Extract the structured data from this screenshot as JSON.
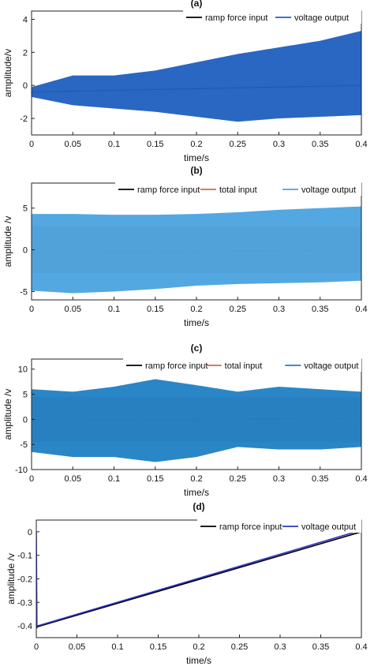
{
  "chart_data": [
    {
      "panel": "(a)",
      "type": "line",
      "title": "(a)",
      "xlabel": "time/s",
      "ylabel": "amplitude/v",
      "xlim": [
        0,
        0.4
      ],
      "ylim": [
        -3,
        4.5
      ],
      "xticks": [
        0,
        0.05,
        0.1,
        0.15,
        0.2,
        0.25,
        0.3,
        0.35,
        0.4
      ],
      "xtick_labels": [
        "0",
        "0.05",
        "0.1",
        "0.15",
        "0.2",
        "0.25",
        "0.3",
        "0.35",
        "0.4"
      ],
      "yticks": [
        -2,
        0,
        2,
        4
      ],
      "ytick_labels": [
        "-2",
        "0",
        "2",
        "4"
      ],
      "grid": false,
      "legend_position": "top-right",
      "series": [
        {
          "name": "ramp force input",
          "color": "#000000",
          "kind": "ramp",
          "x": [
            0,
            0.4
          ],
          "y": [
            -0.4,
            0.0
          ]
        },
        {
          "name": "voltage output",
          "color": "#1f5fbf",
          "kind": "oscillation",
          "x": [
            0,
            0.05,
            0.1,
            0.15,
            0.2,
            0.25,
            0.3,
            0.35,
            0.4
          ],
          "upper": [
            -0.1,
            0.6,
            0.6,
            0.9,
            1.4,
            1.9,
            2.3,
            2.7,
            3.3
          ],
          "lower": [
            -0.7,
            -1.2,
            -1.4,
            -1.6,
            -1.9,
            -2.2,
            -2.0,
            -1.9,
            -1.8
          ]
        }
      ],
      "legend_entries": [
        "ramp force input",
        "voltage output"
      ]
    },
    {
      "panel": "(b)",
      "type": "line",
      "title": "(b)",
      "xlabel": "time/s",
      "ylabel": "amplitude /v",
      "xlim": [
        0,
        0.4
      ],
      "ylim": [
        -6,
        8
      ],
      "xticks": [
        0,
        0.05,
        0.1,
        0.15,
        0.2,
        0.25,
        0.3,
        0.35,
        0.4
      ],
      "xtick_labels": [
        "0",
        "0.05",
        "0.1",
        "0.15",
        "0.2",
        "0.25",
        "0.3",
        "0.35",
        "0.4"
      ],
      "yticks": [
        -5,
        0,
        5
      ],
      "ytick_labels": [
        "-5",
        "0",
        "5"
      ],
      "grid": false,
      "legend_position": "top-right",
      "series": [
        {
          "name": "ramp force input",
          "color": "#000000",
          "kind": "ramp",
          "x": [
            0,
            0.4
          ],
          "y": [
            -0.4,
            0.0
          ]
        },
        {
          "name": "total input",
          "color": "#d2693e",
          "kind": "oscillation",
          "x": [
            0,
            0.4
          ],
          "upper": [
            2.8,
            2.8
          ],
          "lower": [
            -2.8,
            -2.8
          ]
        },
        {
          "name": "voltage output",
          "color": "#4aa3df",
          "kind": "oscillation",
          "x": [
            0,
            0.05,
            0.1,
            0.15,
            0.2,
            0.25,
            0.3,
            0.35,
            0.4
          ],
          "upper": [
            4.3,
            4.3,
            4.2,
            4.2,
            4.3,
            4.5,
            4.8,
            5.0,
            5.2
          ],
          "lower": [
            -4.9,
            -5.2,
            -5.0,
            -4.7,
            -4.3,
            -4.1,
            -4.0,
            -3.9,
            -3.7
          ]
        }
      ],
      "legend_entries": [
        "ramp force input",
        "total input",
        "voltage output"
      ]
    },
    {
      "panel": "(c)",
      "type": "line",
      "title": "(c)",
      "xlabel": "time/s",
      "ylabel": "amplitude  /v",
      "xlim": [
        0,
        0.4
      ],
      "ylim": [
        -10,
        12
      ],
      "xticks": [
        0,
        0.05,
        0.1,
        0.15,
        0.2,
        0.25,
        0.3,
        0.35,
        0.4
      ],
      "xtick_labels": [
        "0",
        "0.05",
        "0.1",
        "0.15",
        "0.2",
        "0.25",
        "0.3",
        "0.35",
        "0.4"
      ],
      "yticks": [
        -10,
        -5,
        0,
        5,
        10
      ],
      "ytick_labels": [
        "-10",
        "-5",
        "0",
        "5",
        "10"
      ],
      "grid": false,
      "legend_position": "top-right",
      "series": [
        {
          "name": "ramp force input",
          "color": "#000000",
          "kind": "ramp",
          "x": [
            0,
            0.4
          ],
          "y": [
            -0.3,
            0.2
          ]
        },
        {
          "name": "total input",
          "color": "#d2693e",
          "kind": "oscillation",
          "x": [
            0,
            0.4
          ],
          "upper": [
            4.5,
            4.5
          ],
          "lower": [
            -4.5,
            -4.5
          ]
        },
        {
          "name": "voltage output",
          "color": "#1f7fc4",
          "kind": "oscillation",
          "x": [
            0,
            0.05,
            0.1,
            0.15,
            0.2,
            0.25,
            0.3,
            0.35,
            0.4
          ],
          "upper": [
            6.0,
            5.5,
            6.5,
            8.0,
            6.8,
            5.5,
            6.5,
            6.0,
            5.5
          ],
          "lower": [
            -6.5,
            -7.5,
            -7.5,
            -8.5,
            -7.5,
            -5.5,
            -6.0,
            -6.0,
            -5.5
          ]
        }
      ],
      "legend_entries": [
        "ramp force input",
        "total input",
        "voltage output"
      ]
    },
    {
      "panel": "(d)",
      "type": "line",
      "title": "(d)",
      "xlabel": "time/s",
      "ylabel": "amplitude  /v",
      "xlim": [
        0,
        0.4
      ],
      "ylim": [
        -0.45,
        0.05
      ],
      "xticks": [
        0,
        0.05,
        0.1,
        0.15,
        0.2,
        0.25,
        0.3,
        0.35,
        0.4
      ],
      "xtick_labels": [
        "0",
        "0.05",
        "0.1",
        "0.15",
        "0.2",
        "0.25",
        "0.3",
        "0.35",
        "0.4"
      ],
      "yticks": [
        -0.4,
        -0.3,
        -0.2,
        -0.1,
        0
      ],
      "ytick_labels": [
        "-0.4",
        "-0.3",
        "-0.2",
        "-0.1",
        "0"
      ],
      "grid": false,
      "legend_position": "top-right",
      "series": [
        {
          "name": "ramp force input",
          "color": "#000000",
          "kind": "ramp",
          "x": [
            0,
            0.4
          ],
          "y": [
            -0.405,
            0.0
          ]
        },
        {
          "name": "voltage output",
          "color": "#2b35c9",
          "kind": "line",
          "x": [
            0,
            0.0008,
            0.0016,
            0.4
          ],
          "y": [
            0.0,
            -0.41,
            -0.4,
            0.007
          ]
        }
      ],
      "legend_entries": [
        "ramp force input",
        "voltage output"
      ]
    }
  ]
}
